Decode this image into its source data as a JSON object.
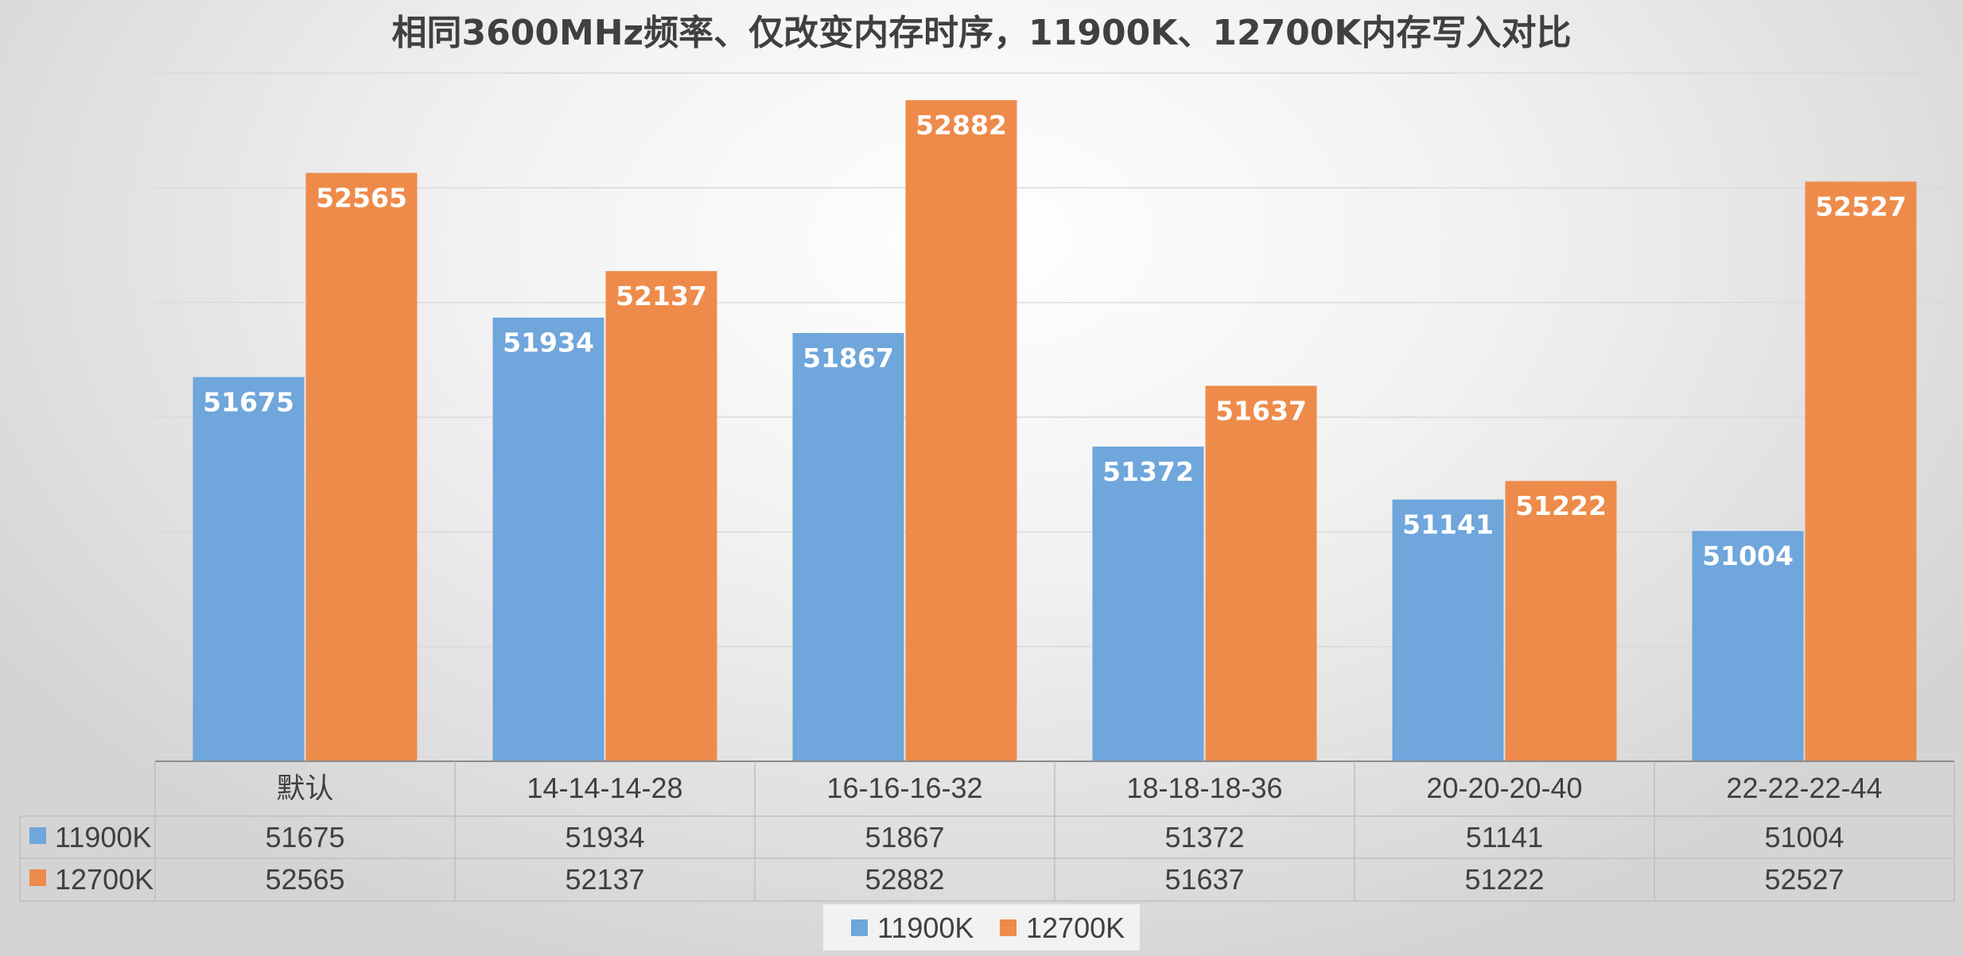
{
  "chart_data": {
    "type": "bar",
    "title": "相同3600MHz频率、仅改变内存时序，11900K、12700K内存写入对比",
    "categories": [
      "默认",
      "14-14-14-28",
      "16-16-16-32",
      "18-18-18-36",
      "20-20-20-40",
      "22-22-22-44"
    ],
    "series": [
      {
        "name": "11900K",
        "color": "#6FA6DB",
        "values": [
          51675,
          51934,
          51867,
          51372,
          51141,
          51004
        ]
      },
      {
        "name": "12700K",
        "color": "#EE8B4A",
        "values": [
          52565,
          52137,
          52882,
          51637,
          51222,
          52527
        ]
      }
    ],
    "ylim": [
      50000,
      53000
    ],
    "y_axis_labels_shown": false,
    "grid": true,
    "data_table": true,
    "legend": "bottom"
  }
}
